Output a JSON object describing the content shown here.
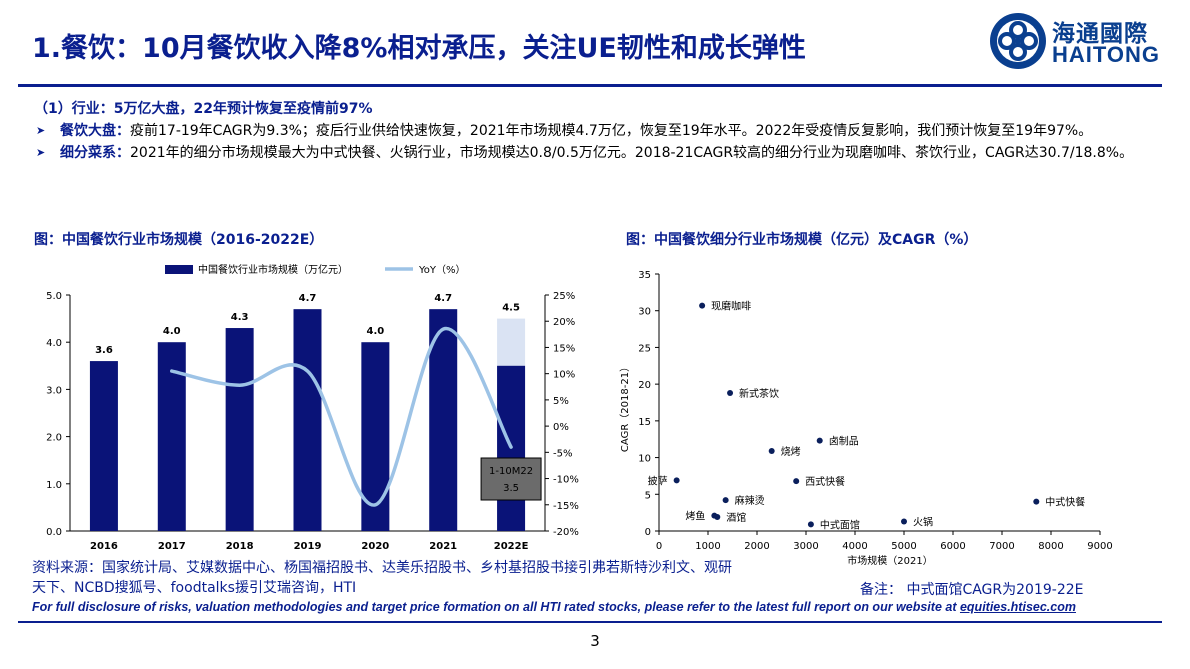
{
  "header": {
    "title": "1.餐饮：10月餐饮收入降8%相对承压，关注UE韧性和成长弹性",
    "logo_cn": "海通國際",
    "logo_en": "HAITONG"
  },
  "summary": {
    "section": "（1）行业：5万亿大盘，22年预计恢复至疫情前97%",
    "bullets": [
      {
        "lead": "餐饮大盘：",
        "text": "疫前17-19年CAGR为9.3%；疫后行业供给快速恢复，2021年市场规模4.7万亿，恢复至19年水平。2022年受疫情反复影响，我们预计恢复至19年97%。"
      },
      {
        "lead": "细分菜系：",
        "text": "2021年的细分市场规模最大为中式快餐、火锅行业，市场规模达0.8/0.5万亿元。2018-21CAGR较高的细分行业为现磨咖啡、茶饮行业，CAGR达30.7/18.8%。"
      }
    ]
  },
  "figure1": {
    "title": "图：中国餐饮行业市场规模（2016-2022E）",
    "colors": {
      "bar": "#0a1378",
      "bar_estimate": "#dae3f3",
      "line": "#9dc3e6",
      "callout": "#6b6b6b"
    }
  },
  "figure2": {
    "title": "图：中国餐饮细分行业市场规模（亿元）及CAGR（%）",
    "colors": {
      "point": "#0a1f5c"
    }
  },
  "chart_data": [
    {
      "type": "bar",
      "categories": [
        "2016",
        "2017",
        "2018",
        "2019",
        "2020",
        "2021",
        "2022E"
      ],
      "series": [
        {
          "name": "中国餐饮行业市场规模（万亿元）",
          "values": [
            3.6,
            4.0,
            4.3,
            4.7,
            4.0,
            4.7,
            4.5
          ],
          "axis": "left"
        },
        {
          "name": "YoY（%）",
          "type": "line",
          "values": [
            null,
            10.5,
            7.8,
            10.5,
            -15.0,
            18.5,
            -4.0
          ],
          "axis": "right"
        }
      ],
      "data_labels": [
        "3.6",
        "4.0",
        "4.3",
        "4.7",
        "4.0",
        "4.7",
        "4.5"
      ],
      "estimate_split": {
        "category": "2022E",
        "lower_value": 3.5,
        "lower_label": "1-10M22",
        "lower_value_label": "3.5"
      },
      "yticks_left": [
        "0.0",
        "1.0",
        "2.0",
        "3.0",
        "4.0",
        "5.0"
      ],
      "ylim": [
        0,
        5
      ],
      "yticks_right": [
        "-20%",
        "-15%",
        "-10%",
        "-5%",
        "0%",
        "5%",
        "10%",
        "15%",
        "20%",
        "25%"
      ],
      "ylim_right": [
        -20,
        25
      ],
      "legend_position": "top"
    },
    {
      "type": "scatter",
      "xlabel": "市场规模（2021）",
      "ylabel": "CAGR（2018-21）",
      "xlim": [
        0,
        9000
      ],
      "ylim": [
        0,
        35
      ],
      "xticks": [
        "0",
        "1000",
        "2000",
        "3000",
        "4000",
        "5000",
        "6000",
        "7000",
        "8000",
        "9000"
      ],
      "yticks": [
        "0",
        "5",
        "10",
        "15",
        "20",
        "25",
        "30",
        "35"
      ],
      "points": [
        {
          "label": "现磨咖啡",
          "x": 880,
          "y": 30.7
        },
        {
          "label": "新式茶饮",
          "x": 1450,
          "y": 18.8
        },
        {
          "label": "卤制品",
          "x": 3280,
          "y": 12.3
        },
        {
          "label": "烧烤",
          "x": 2300,
          "y": 10.9
        },
        {
          "label": "披萨",
          "x": 360,
          "y": 6.9
        },
        {
          "label": "西式快餐",
          "x": 2800,
          "y": 6.8
        },
        {
          "label": "麻辣烫",
          "x": 1360,
          "y": 4.2
        },
        {
          "label": "中式快餐",
          "x": 7700,
          "y": 4.0
        },
        {
          "label": "烤鱼",
          "x": 1130,
          "y": 2.1
        },
        {
          "label": "酒馆",
          "x": 1190,
          "y": 1.9
        },
        {
          "label": "火锅",
          "x": 5000,
          "y": 1.3
        },
        {
          "label": "中式面馆",
          "x": 3100,
          "y": 0.9
        }
      ]
    }
  ],
  "footer": {
    "source": "资料来源：国家统计局、艾媒数据中心、杨国福招股书、达美乐招股书、乡村基招股书接引弗若斯特沙利文、观研天下、NCBD搜狐号、foodtalks援引艾瑞咨询，HTI",
    "note": "备注：  中式面馆CAGR为2019-22E",
    "disclosure": "For full disclosure of risks, valuation methodologies and target price formation on all HTI rated stocks, please refer to the latest full report on our website at ",
    "disclosure_link": "equities.htisec.com",
    "page_number": "3"
  }
}
